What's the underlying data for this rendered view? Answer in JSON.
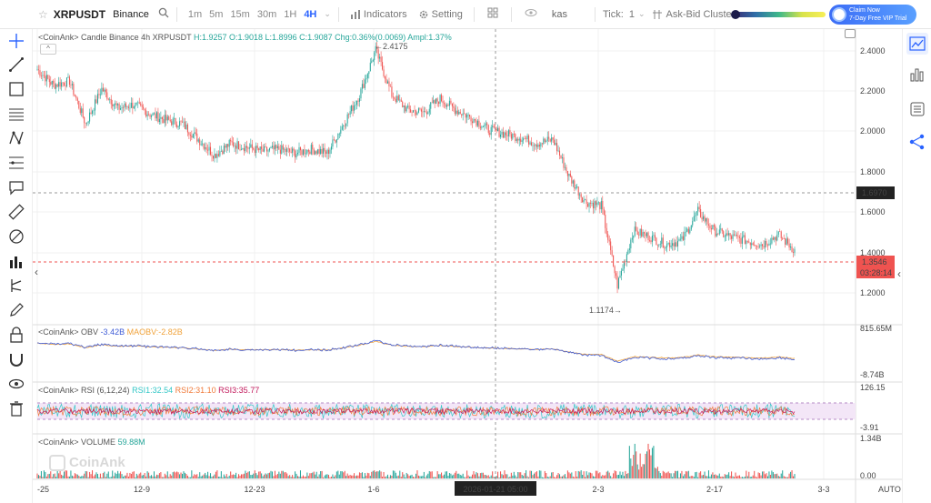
{
  "toolbar": {
    "symbol": "XRPUSDT",
    "exchange": "Binance",
    "timeframes": [
      "1m",
      "5m",
      "15m",
      "30m",
      "1H",
      "4H"
    ],
    "active_timeframe": "4H",
    "indicators_label": "Indicators",
    "setting_label": "Setting",
    "search_value": "kas",
    "tick_label": "Tick:",
    "tick_value": "1",
    "cluster_label": "Ask-Bid Cluster",
    "promo_line1": "Claim Now",
    "promo_line2": "7-Day Free VIP Trial"
  },
  "main_legend": {
    "prefix": "<CoinAnk> Candle  Binance 4h XRPUSDT",
    "h": "H:1.9257",
    "o": "O:1.9018",
    "l": "L:1.8996",
    "c": "C:1.9087",
    "chg": "Chg:0.36%(0.0069)",
    "ampl": "Ampl:1.37%"
  },
  "obv_legend": {
    "prefix": "<CoinAnk> OBV",
    "obv": "-3.42B",
    "maobv": "MAOBV:-2.82B"
  },
  "rsi_legend": {
    "prefix": "<CoinAnk> RSI (6,12,24)",
    "rsi1": "RSI1:32.54",
    "rsi2": "RSI2:31.10",
    "rsi3": "RSI3:35.77"
  },
  "vol_legend": {
    "prefix": "<CoinAnk> VOLUME",
    "value": "59.88M"
  },
  "watermark": "CoinAnk",
  "price_axis": [
    "2.4000",
    "2.2000",
    "2.0000",
    "1.8000",
    "1.6000",
    "1.4000",
    "1.2000"
  ],
  "obv_axis": [
    "815.65M",
    "-8.74B"
  ],
  "rsi_axis": [
    "126.15",
    "-3.91"
  ],
  "vol_axis": [
    "1.34B",
    "0.00"
  ],
  "time_axis": [
    "-25",
    "12-9",
    "12-23",
    "1-6",
    "2-3",
    "2-17",
    "3-3"
  ],
  "crosshair_time": "2026-01-21 05:00",
  "auto_label": "AUTO",
  "high_marker": "←2.4175",
  "low_marker": "1.1174→",
  "crosshair_price": "1.6970",
  "last_price": "1.3546",
  "countdown": "03:28:14",
  "colors": {
    "up": "#26a69a",
    "down": "#ef5350",
    "accent": "#2962ff",
    "obv": "#3e5bd6",
    "maobv": "#f0a23a",
    "rsi1": "#34c7c7",
    "rsi2": "#f07a3a",
    "rsi3": "#c2185b"
  },
  "chart_data": {
    "type": "candlestick",
    "x_ticks": [
      "-25",
      "12-9",
      "12-23",
      "1-6",
      "2-3",
      "2-17",
      "3-3"
    ],
    "ylim": [
      1.0,
      2.45
    ],
    "anchors": [
      [
        "11-25",
        2.28
      ],
      [
        "11-27",
        2.2
      ],
      [
        "11-29",
        2.22
      ],
      [
        "12-1",
        2.0
      ],
      [
        "12-3",
        2.18
      ],
      [
        "12-5",
        2.08
      ],
      [
        "12-7",
        2.1
      ],
      [
        "12-9",
        2.05
      ],
      [
        "12-11",
        2.02
      ],
      [
        "12-13",
        2.0
      ],
      [
        "12-15",
        1.92
      ],
      [
        "12-17",
        1.84
      ],
      [
        "12-19",
        1.9
      ],
      [
        "12-21",
        1.88
      ],
      [
        "12-23",
        1.86
      ],
      [
        "12-25",
        1.87
      ],
      [
        "12-27",
        1.85
      ],
      [
        "12-29",
        1.87
      ],
      [
        "12-31",
        1.85
      ],
      [
        "1-2",
        2.0
      ],
      [
        "1-4",
        2.15
      ],
      [
        "1-6",
        2.38
      ],
      [
        "1-8",
        2.15
      ],
      [
        "1-10",
        2.07
      ],
      [
        "1-12",
        2.06
      ],
      [
        "1-14",
        2.13
      ],
      [
        "1-16",
        2.07
      ],
      [
        "1-18",
        2.03
      ],
      [
        "1-20",
        1.97
      ],
      [
        "1-22",
        1.95
      ],
      [
        "1-24",
        1.93
      ],
      [
        "1-26",
        1.9
      ],
      [
        "1-28",
        1.92
      ],
      [
        "1-30",
        1.73
      ],
      [
        "2-1",
        1.6
      ],
      [
        "2-3",
        1.58
      ],
      [
        "2-5",
        1.17
      ],
      [
        "2-7",
        1.45
      ],
      [
        "2-9",
        1.42
      ],
      [
        "2-11",
        1.38
      ],
      [
        "2-13",
        1.4
      ],
      [
        "2-15",
        1.55
      ],
      [
        "2-17",
        1.45
      ],
      [
        "2-19",
        1.42
      ],
      [
        "2-21",
        1.4
      ],
      [
        "2-23",
        1.38
      ],
      [
        "2-25",
        1.43
      ],
      [
        "2-27",
        1.35
      ]
    ]
  }
}
